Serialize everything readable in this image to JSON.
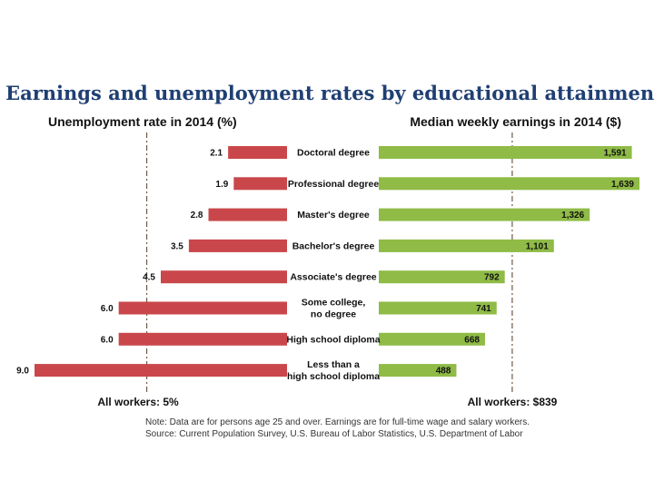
{
  "chart_data": {
    "type": "bar",
    "title": "Earnings and unemployment rates by educational attainment",
    "categories": [
      "Doctoral degree",
      "Professional degree",
      "Master's degree",
      "Bachelor's degree",
      "Associate's degree",
      "Some college,\nno degree",
      "High school diploma",
      "Less than a\nhigh school diploma"
    ],
    "series": [
      {
        "name": "Unemployment rate in 2014 (%)",
        "values": [
          2.1,
          1.9,
          2.8,
          3.5,
          4.5,
          6.0,
          6.0,
          9.0
        ],
        "labels": [
          "2.1",
          "1.9",
          "2.8",
          "3.5",
          "4.5",
          "6.0",
          "6.0",
          "9.0"
        ],
        "color": "#c9474a",
        "max": 9.0,
        "reference_value": 5,
        "reference_label": "All workers: 5%"
      },
      {
        "name": "Median weekly earnings in 2014 ($)",
        "values": [
          1591,
          1639,
          1326,
          1101,
          792,
          741,
          668,
          488
        ],
        "labels": [
          "1,591",
          "1,639",
          "1,326",
          "1,101",
          "792",
          "741",
          "668",
          "488"
        ],
        "color": "#8fbb46",
        "max": 1639,
        "reference_value": 839,
        "reference_label": "All workers: $839"
      }
    ],
    "notes": [
      "Note: Data are for persons age 25 and over. Earnings are for full-time wage and salary workers.",
      "Source: Current Population Survey, U.S. Bureau of Labor Statistics, U.S. Department of Labor"
    ]
  }
}
